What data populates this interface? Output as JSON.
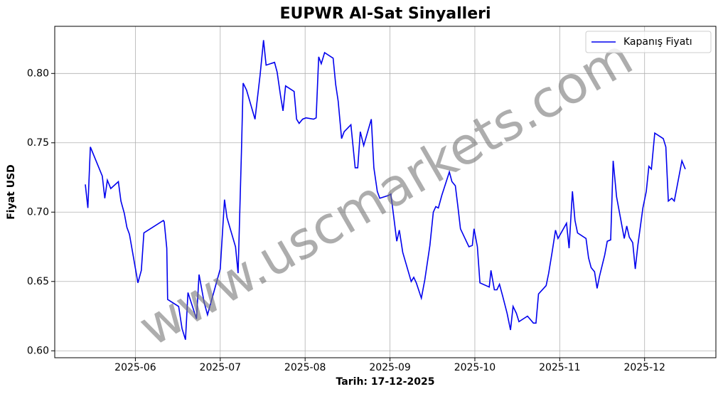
{
  "chart_data": {
    "type": "line",
    "title": "EUPWR Al-Sat Sinyalleri",
    "xlabel": "Tarih: 17-12-2025",
    "ylabel": "Fiyat USD",
    "watermark": "www.uscmarkets.com",
    "grid": true,
    "legend": "upper right",
    "xlim": [
      5.05,
      12.84
    ],
    "xticks": [
      {
        "value": 6,
        "label": "2025-06"
      },
      {
        "value": 7,
        "label": "2025-07"
      },
      {
        "value": 8,
        "label": "2025-08"
      },
      {
        "value": 9,
        "label": "2025-09"
      },
      {
        "value": 10,
        "label": "2025-10"
      },
      {
        "value": 11,
        "label": "2025-11"
      },
      {
        "value": 12,
        "label": "2025-12"
      }
    ],
    "ylim": [
      0.595,
      0.834
    ],
    "yticks": [
      {
        "value": 0.6,
        "label": "0.60"
      },
      0.65,
      {
        "value": 0.7,
        "label": "0.70"
      },
      0.75,
      {
        "value": 0.8,
        "label": "0.80"
      }
    ],
    "x": [
      5.41,
      5.44,
      5.47,
      5.61,
      5.64,
      5.67,
      5.71,
      5.8,
      5.83,
      5.87,
      5.9,
      5.93,
      6.03,
      6.07,
      6.1,
      6.33,
      6.34,
      6.37,
      6.38,
      6.51,
      6.55,
      6.59,
      6.62,
      6.72,
      6.75,
      6.81,
      6.85,
      7.0,
      7.05,
      7.08,
      7.18,
      7.21,
      7.25,
      7.27,
      7.31,
      7.41,
      7.47,
      7.51,
      7.54,
      7.64,
      7.67,
      7.71,
      7.74,
      7.77,
      7.87,
      7.9,
      7.93,
      7.97,
      8.01,
      8.1,
      8.13,
      8.16,
      8.19,
      8.23,
      8.33,
      8.36,
      8.39,
      8.43,
      8.46,
      8.54,
      8.59,
      8.62,
      8.65,
      8.69,
      8.78,
      8.81,
      8.85,
      8.88,
      8.98,
      9.01,
      9.05,
      9.08,
      9.11,
      9.15,
      9.25,
      9.28,
      9.31,
      9.37,
      9.41,
      9.47,
      9.51,
      9.54,
      9.57,
      9.61,
      9.7,
      9.73,
      9.77,
      9.8,
      9.83,
      9.93,
      9.97,
      9.99,
      10.03,
      10.06,
      10.17,
      10.19,
      10.23,
      10.26,
      10.29,
      10.33,
      10.38,
      10.42,
      10.45,
      10.49,
      10.52,
      10.62,
      10.69,
      10.72,
      10.75,
      10.84,
      10.87,
      10.91,
      10.95,
      10.98,
      11.08,
      11.11,
      11.15,
      11.18,
      11.21,
      11.31,
      11.34,
      11.37,
      11.41,
      11.44,
      11.47,
      11.53,
      11.56,
      11.6,
      11.63,
      11.67,
      11.76,
      11.79,
      11.82,
      11.86,
      11.89,
      11.92,
      11.98,
      12.02,
      12.05,
      12.08,
      12.12,
      12.22,
      12.25,
      12.28,
      12.32,
      12.35,
      12.44,
      12.48
    ],
    "series": [
      {
        "name": "Kapanış Fiyatı",
        "color": "#0000ee",
        "values": [
          0.72,
          0.703,
          0.747,
          0.726,
          0.71,
          0.723,
          0.717,
          0.722,
          0.708,
          0.699,
          0.689,
          0.684,
          0.649,
          0.658,
          0.685,
          0.694,
          0.693,
          0.674,
          0.637,
          0.632,
          0.616,
          0.608,
          0.642,
          0.623,
          0.655,
          0.635,
          0.626,
          0.659,
          0.709,
          0.696,
          0.675,
          0.656,
          0.743,
          0.793,
          0.788,
          0.767,
          0.799,
          0.824,
          0.806,
          0.808,
          0.801,
          0.784,
          0.773,
          0.791,
          0.787,
          0.767,
          0.764,
          0.767,
          0.768,
          0.767,
          0.768,
          0.812,
          0.807,
          0.815,
          0.811,
          0.792,
          0.78,
          0.753,
          0.758,
          0.763,
          0.732,
          0.732,
          0.758,
          0.748,
          0.767,
          0.732,
          0.715,
          0.71,
          0.712,
          0.713,
          0.694,
          0.679,
          0.687,
          0.671,
          0.65,
          0.653,
          0.649,
          0.638,
          0.651,
          0.676,
          0.7,
          0.704,
          0.703,
          0.712,
          0.729,
          0.722,
          0.719,
          0.704,
          0.688,
          0.675,
          0.676,
          0.688,
          0.675,
          0.649,
          0.646,
          0.658,
          0.644,
          0.644,
          0.648,
          0.639,
          0.627,
          0.615,
          0.632,
          0.627,
          0.621,
          0.625,
          0.62,
          0.62,
          0.641,
          0.647,
          0.656,
          0.671,
          0.687,
          0.681,
          0.692,
          0.674,
          0.715,
          0.694,
          0.685,
          0.681,
          0.667,
          0.66,
          0.657,
          0.645,
          0.654,
          0.669,
          0.679,
          0.68,
          0.737,
          0.711,
          0.681,
          0.69,
          0.682,
          0.678,
          0.659,
          0.676,
          0.703,
          0.715,
          0.733,
          0.731,
          0.757,
          0.753,
          0.747,
          0.708,
          0.71,
          0.708,
          0.737,
          0.731
        ]
      }
    ]
  }
}
